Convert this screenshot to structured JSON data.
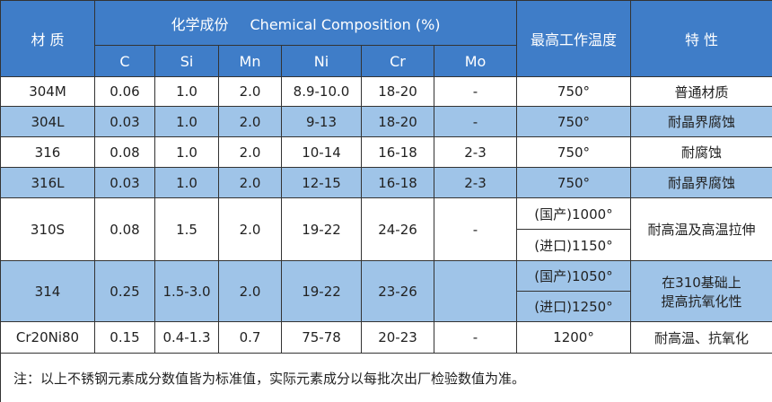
{
  "header": {
    "material": "材 质",
    "title_cn": "化学成份",
    "title_en": "Chemical Composition (%)",
    "max_temp": "最高工作温度",
    "property": "特 性",
    "elements": [
      "C",
      "Si",
      "Mn",
      "Ni",
      "Cr",
      "Mo"
    ]
  },
  "table": {
    "rows": [
      [
        "304M",
        "0.06",
        "1.0",
        "2.0",
        "8.9-10.0",
        "18-20",
        "-",
        [
          "750°"
        ],
        [
          "普通材质"
        ]
      ],
      [
        "304L",
        "0.03",
        "1.0",
        "2.0",
        "9-13",
        "18-20",
        "-",
        [
          "750°"
        ],
        [
          "耐晶界腐蚀"
        ]
      ],
      [
        "316",
        "0.08",
        "1.0",
        "2.0",
        "10-14",
        "16-18",
        "2-3",
        [
          "750°"
        ],
        [
          "耐腐蚀"
        ]
      ],
      [
        "316L",
        "0.03",
        "1.0",
        "2.0",
        "12-15",
        "16-18",
        "2-3",
        [
          "750°"
        ],
        [
          "耐晶界腐蚀"
        ]
      ],
      [
        "310S",
        "0.08",
        "1.5",
        "2.0",
        "19-22",
        "24-26",
        "-",
        [
          "(国产)1000°",
          "(进口)1150°"
        ],
        [
          "耐高温及高温拉伸"
        ]
      ],
      [
        "314",
        "0.25",
        "1.5-3.0",
        "2.0",
        "19-22",
        "23-26",
        "",
        [
          "(国产)1050°",
          "(进口)1250°"
        ],
        [
          "在310基础上",
          "提高抗氧化性"
        ]
      ],
      [
        "Cr20Ni80",
        "0.15",
        "0.4-1.3",
        "0.7",
        "75-78",
        "20-23",
        "-",
        [
          "1200°"
        ],
        [
          "耐高温、抗氧化"
        ]
      ]
    ]
  },
  "note": "注：以上不锈钢元素成分数值皆为标准值，实际元素成分以每批次出厂检验数值为准。"
}
